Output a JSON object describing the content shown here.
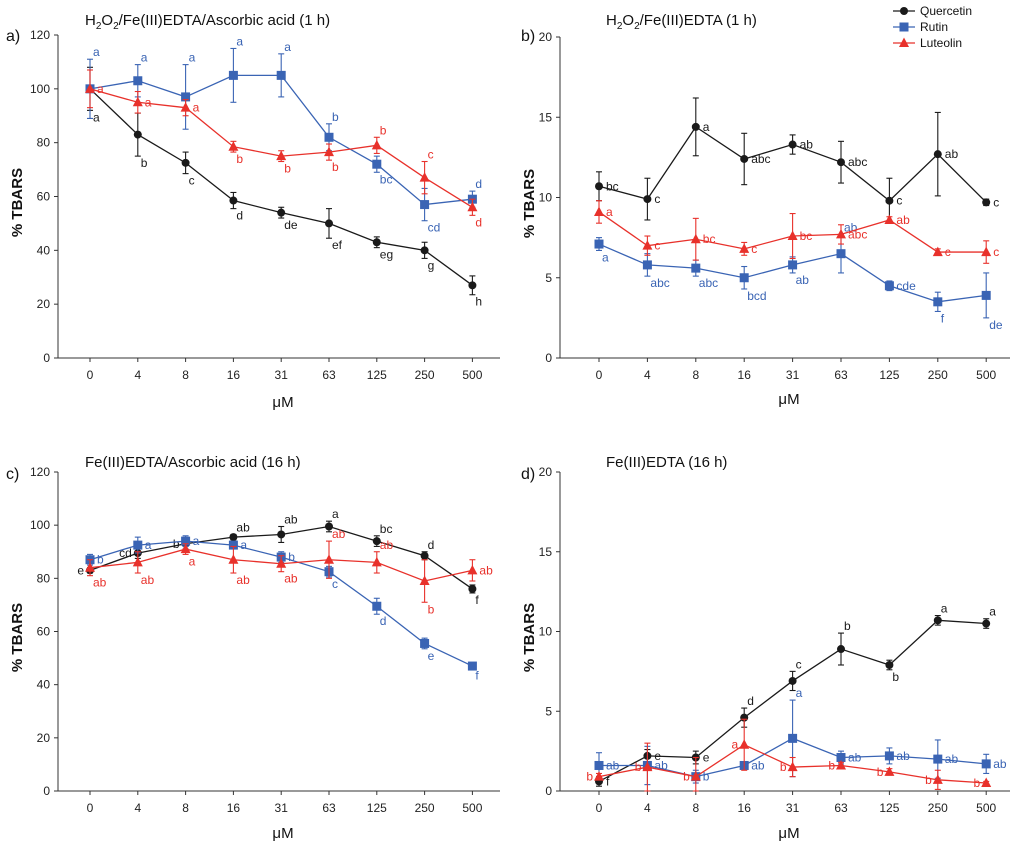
{
  "legend": [
    {
      "name": "Quercetin",
      "color": "#1a1a1a",
      "marker": "circle"
    },
    {
      "name": "Rutin",
      "color": "#3a64b4",
      "marker": "square"
    },
    {
      "name": "Luteolin",
      "color": "#e8312b",
      "marker": "triangle"
    }
  ],
  "chart_data": [
    {
      "panel_label": "a)",
      "title_main": "H",
      "title_parts": [
        [
          "H",
          ""
        ],
        [
          "2",
          "sub"
        ],
        [
          "O",
          ""
        ],
        [
          "2",
          "sub"
        ],
        [
          "/Fe(III)EDTA/Ascorbic acid (1 h)",
          ""
        ]
      ],
      "type": "line",
      "xlabel": "μM",
      "ylabel": "% TBARS",
      "categories": [
        "0",
        "4",
        "8",
        "16",
        "31",
        "63",
        "125",
        "250",
        "500"
      ],
      "ylim": [
        0,
        120
      ],
      "yticks": [
        0,
        20,
        40,
        60,
        80,
        100,
        120
      ],
      "series": [
        {
          "name": "Quercetin",
          "values": [
            100,
            83,
            72.5,
            58.5,
            54,
            50,
            43,
            40,
            27
          ],
          "err": [
            8,
            8,
            4,
            3,
            2,
            5.5,
            2,
            3,
            3.5
          ],
          "labels": [
            "a",
            "b",
            "c",
            "d",
            "de",
            "ef",
            "eg",
            "g",
            "h"
          ],
          "label_pos": [
            "below",
            "below",
            "below",
            "below",
            "below",
            "below",
            "below",
            "below",
            "below"
          ]
        },
        {
          "name": "Rutin",
          "values": [
            100,
            103,
            97,
            105,
            105,
            82,
            72,
            57,
            59
          ],
          "err": [
            11,
            6,
            12,
            10,
            8,
            5,
            3,
            6,
            3
          ],
          "labels": [
            "a",
            "a",
            "a",
            "a",
            "a",
            "b",
            "bc",
            "cd",
            "d"
          ],
          "label_pos": [
            "above",
            "above",
            "above",
            "above",
            "above",
            "above",
            "below",
            "below",
            "above"
          ]
        },
        {
          "name": "Luteolin",
          "values": [
            100,
            95,
            93,
            78.5,
            75,
            76.5,
            79,
            67,
            56
          ],
          "err": [
            7,
            4,
            3,
            2,
            2,
            3,
            3,
            6,
            3
          ],
          "labels": [
            "a",
            "a",
            "a",
            "b",
            "b",
            "b",
            "b",
            "c",
            "d"
          ],
          "label_pos": [
            "right",
            "right",
            "right",
            "below",
            "below",
            "below",
            "above",
            "above",
            "below"
          ]
        }
      ]
    },
    {
      "panel_label": "b)",
      "title_parts": [
        [
          "H",
          ""
        ],
        [
          "2",
          "sub"
        ],
        [
          "O",
          ""
        ],
        [
          "2",
          "sub"
        ],
        [
          "/Fe(III)EDTA (1 h)",
          ""
        ]
      ],
      "type": "line",
      "xlabel": "μM",
      "ylabel": "% TBARS",
      "categories": [
        "0",
        "4",
        "8",
        "16",
        "31",
        "63",
        "125",
        "250",
        "500"
      ],
      "ylim": [
        0,
        20
      ],
      "yticks": [
        0,
        5,
        10,
        15,
        20
      ],
      "series": [
        {
          "name": "Quercetin",
          "values": [
            10.7,
            9.9,
            14.4,
            12.4,
            13.3,
            12.2,
            9.8,
            12.7,
            9.7
          ],
          "err": [
            0.9,
            1.3,
            1.8,
            1.6,
            0.6,
            1.3,
            1.4,
            2.6,
            0.2
          ],
          "labels": [
            "bc",
            "c",
            "a",
            "abc",
            "ab",
            "abc",
            "c",
            "ab",
            "c"
          ],
          "label_pos": [
            "right",
            "right",
            "right",
            "right",
            "right",
            "right",
            "right",
            "right",
            "right"
          ]
        },
        {
          "name": "Rutin",
          "values": [
            7.1,
            5.8,
            5.6,
            5.0,
            5.8,
            6.5,
            4.5,
            3.5,
            3.9
          ],
          "err": [
            0.4,
            0.7,
            0.5,
            0.7,
            0.5,
            1.2,
            0.3,
            0.6,
            1.4
          ],
          "labels": [
            "a",
            "abc",
            "abc",
            "bcd",
            "ab",
            "ab",
            "cde",
            "f",
            "de"
          ],
          "label_pos": [
            "below",
            "below",
            "below",
            "below",
            "below",
            "above",
            "right",
            "below",
            "below"
          ]
        },
        {
          "name": "Luteolin",
          "values": [
            9.1,
            7.0,
            7.4,
            6.8,
            7.6,
            7.7,
            8.6,
            6.6,
            6.6
          ],
          "err": [
            0.7,
            0.6,
            1.3,
            0.4,
            1.4,
            0.6,
            0.2,
            0.2,
            0.7
          ],
          "labels": [
            "a",
            "c",
            "bc",
            "c",
            "bc",
            "abc",
            "ab",
            "c",
            "c"
          ],
          "label_pos": [
            "right",
            "right",
            "right",
            "right",
            "right",
            "right",
            "right",
            "right",
            "right"
          ]
        }
      ]
    },
    {
      "panel_label": "c)",
      "title_parts": [
        [
          "Fe(III)EDTA/Ascorbic acid (16 h)",
          ""
        ]
      ],
      "type": "line",
      "xlabel": "μM",
      "ylabel": "% TBARS",
      "categories": [
        "0",
        "4",
        "8",
        "16",
        "31",
        "63",
        "125",
        "250",
        "500"
      ],
      "ylim": [
        0,
        120
      ],
      "yticks": [
        0,
        20,
        40,
        60,
        80,
        100,
        120
      ],
      "series": [
        {
          "name": "Quercetin",
          "values": [
            83,
            89.5,
            93,
            95.5,
            96.5,
            99.5,
            94,
            88.5,
            76
          ],
          "err": [
            1,
            2,
            2,
            1,
            3,
            2,
            2,
            1.5,
            1.5
          ],
          "labels": [
            "e",
            "cd",
            "b",
            "ab",
            "ab",
            "a",
            "bc",
            "d",
            "f"
          ],
          "label_pos": [
            "left",
            "left",
            "left",
            "above",
            "above",
            "above",
            "above",
            "above",
            "below"
          ]
        },
        {
          "name": "Rutin",
          "values": [
            87,
            92.5,
            94,
            92.5,
            88,
            82.5,
            69.5,
            55.5,
            47
          ],
          "err": [
            2,
            3,
            2,
            1,
            2,
            2,
            3,
            2,
            1
          ],
          "labels": [
            "b",
            "a",
            "a",
            "a",
            "b",
            "c",
            "d",
            "e",
            "f"
          ],
          "label_pos": [
            "right",
            "right",
            "right",
            "right",
            "right",
            "below",
            "below",
            "below",
            "below"
          ]
        },
        {
          "name": "Luteolin",
          "values": [
            84,
            86,
            91,
            87,
            85.5,
            87,
            86,
            79,
            83
          ],
          "err": [
            3,
            4,
            2,
            5,
            3,
            7,
            4,
            8,
            4
          ],
          "labels": [
            "ab",
            "ab",
            "a",
            "ab",
            "ab",
            "ab",
            "ab",
            "b",
            "ab"
          ],
          "label_pos": [
            "below",
            "below",
            "below",
            "below",
            "below",
            "above",
            "above",
            "below",
            "right"
          ]
        }
      ]
    },
    {
      "panel_label": "d)",
      "title_parts": [
        [
          "Fe(III)EDTA (16 h)",
          ""
        ]
      ],
      "type": "line",
      "xlabel": "μM",
      "ylabel": "% TBARS",
      "categories": [
        "0",
        "4",
        "8",
        "16",
        "31",
        "63",
        "125",
        "250",
        "500"
      ],
      "ylim": [
        0,
        20
      ],
      "yticks": [
        0,
        5,
        10,
        15,
        20
      ],
      "series": [
        {
          "name": "Quercetin",
          "values": [
            0.6,
            2.2,
            2.1,
            4.6,
            6.9,
            8.9,
            7.9,
            10.7,
            10.5
          ],
          "err": [
            0.3,
            0.4,
            0.4,
            0.6,
            0.6,
            1.0,
            0.3,
            0.3,
            0.3
          ],
          "labels": [
            "f",
            "e",
            "e",
            "d",
            "c",
            "b",
            "b",
            "a",
            "a"
          ],
          "label_pos": [
            "right",
            "right",
            "right",
            "above",
            "above",
            "above",
            "below",
            "above",
            "above"
          ]
        },
        {
          "name": "Rutin",
          "values": [
            1.6,
            1.6,
            0.9,
            1.6,
            3.3,
            2.1,
            2.2,
            2.0,
            1.7
          ],
          "err": [
            0.8,
            1.2,
            0.4,
            0.2,
            2.4,
            0.4,
            0.5,
            1.2,
            0.6
          ],
          "labels": [
            "ab",
            "ab",
            "b",
            "ab",
            "a",
            "ab",
            "ab",
            "ab",
            "ab"
          ],
          "label_pos": [
            "right",
            "right",
            "right",
            "right",
            "above",
            "right",
            "right",
            "right",
            "right"
          ]
        },
        {
          "name": "Luteolin",
          "values": [
            0.9,
            1.5,
            0.9,
            2.9,
            1.5,
            1.6,
            1.2,
            0.7,
            0.5
          ],
          "err": [
            0.2,
            1.5,
            1.2,
            1.6,
            0.6,
            0.2,
            0.2,
            0.6,
            0.1
          ],
          "labels": [
            "b",
            "b",
            "b",
            "a",
            "b",
            "b",
            "b",
            "b",
            "b"
          ],
          "label_pos": [
            "left",
            "left",
            "left",
            "left",
            "left",
            "left",
            "left",
            "left",
            "left"
          ]
        }
      ]
    }
  ]
}
